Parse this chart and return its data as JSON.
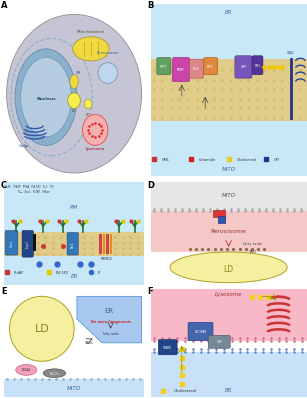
{
  "figure_bg": "#ffffff",
  "panel_label_fontsize": 6,
  "panel_label_weight": "bold",
  "panels": {
    "A": {
      "cell_outer_color": "#c5c5d5",
      "cell_inner_color": "#d5d5e5",
      "nucleus_color": "#8ab0cc",
      "nucleus_inner": "#b5cce0",
      "mito_color": "#f0d840",
      "mito2_color": "#f0d840",
      "ld_color": "#f5ee50",
      "lysosome_outer": "#ee3333",
      "peroxisome_color": "#c0d5f0",
      "golgi_color": "#3355aa",
      "er_color": "#8ab0cc"
    },
    "B": {
      "bg_top": "#c8e8f8",
      "bg_mid_color": "#e8d890",
      "bg_bot": "#c8e8f8",
      "top_label": "ER",
      "bottom_label": "MITO"
    },
    "C": {
      "bg_top": "#c8e8f8",
      "bg_mid_color": "#e8d890",
      "bg_bot": "#c8e8f8",
      "top_label": "PM",
      "bottom_label": "ER"
    },
    "D": {
      "bg_mito": "#e5e5e5",
      "bg_perox": "#f5c8c8",
      "bg_ld": "#f5f0a0",
      "mito_label": "MITO",
      "perox_label": "Peroxisome",
      "ld_label": "LD"
    },
    "E": {
      "bg_ld": "#f5f0a0",
      "bg_er": "#a8c8f0",
      "bg_mito": "#c8e0f8",
      "ld_label": "LD",
      "er_label": "ER",
      "mito_label": "MITO"
    },
    "F": {
      "bg_lyso": "#f8b8c8",
      "bg_er": "#c8e0f8",
      "lyso_label": "Lysosome",
      "er_label": "ER",
      "cholesterol_label": "Cholesterol"
    }
  }
}
